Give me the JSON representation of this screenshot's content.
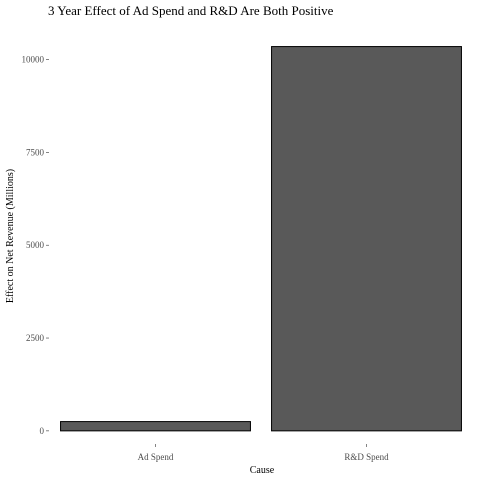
{
  "chart_data": {
    "type": "bar",
    "title": "3 Year Effect of Ad Spend and R&D Are Both Positive",
    "xlabel": "Cause",
    "ylabel": "Effect on Net Revenue (Millions)",
    "categories": [
      "Ad Spend",
      "R&D Spend"
    ],
    "values": [
      250,
      10350
    ],
    "ylim": [
      -300,
      10850
    ],
    "yticks": [
      0,
      2500,
      5000,
      7500,
      10000
    ],
    "ytick_labels": [
      "0",
      "2500",
      "5000",
      "7500",
      "10000"
    ],
    "grid": false,
    "legend": "none",
    "bar_color": "#595959",
    "bar_edge_color": "#000000"
  }
}
